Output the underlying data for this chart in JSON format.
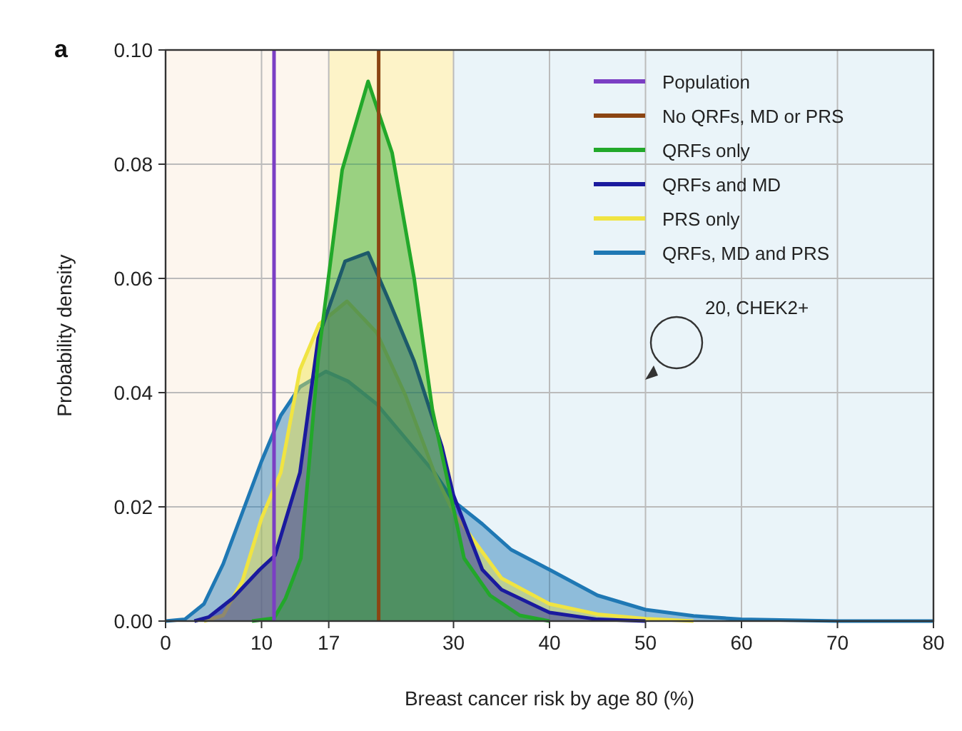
{
  "chart_data": {
    "type": "area",
    "xlabel": "Breast cancer risk by age 80 (%)",
    "ylabel": "Probability density",
    "xlim": [
      0,
      80
    ],
    "xticks": [
      0,
      10,
      17,
      30,
      40,
      50,
      60,
      70,
      80
    ],
    "ylim": [
      0,
      0.1
    ],
    "yticks": [
      {
        "value": 0,
        "label": "0.00"
      },
      {
        "value": 0.02,
        "label": "0.02"
      },
      {
        "value": 0.04,
        "label": "0.04"
      },
      {
        "value": 0.06,
        "label": "0.06"
      },
      {
        "value": 0.08,
        "label": "0.08"
      },
      {
        "value": 0.1,
        "label": "0.10"
      }
    ],
    "grid": true,
    "legend": "top right",
    "bands": [
      {
        "axis": "x",
        "from": 0,
        "to": 17,
        "color": "#fdf6ee"
      },
      {
        "axis": "x",
        "from": 17,
        "to": 30,
        "color": "#fdf3c8"
      },
      {
        "axis": "x",
        "from": 30,
        "to": 80,
        "color": "#eaf4f9"
      }
    ],
    "series": [
      {
        "name": "Population",
        "type": "line",
        "color": "#7b3fc4",
        "x": [
          11.3,
          11.3
        ],
        "values": [
          0,
          0.1
        ]
      },
      {
        "name": "No QRFs, MD or PRS",
        "type": "line",
        "color": "#8b4513",
        "x": [
          22.2,
          22.2
        ],
        "values": [
          0,
          0.1
        ]
      },
      {
        "name": "QRFs only",
        "color": "#22a82a",
        "x": [
          9,
          11.3,
          12.5,
          14.1,
          15.9,
          18.4,
          21.1,
          23.6,
          25.9,
          27.8,
          29.9,
          31.1,
          33.8,
          36.9,
          40
        ],
        "values": [
          0,
          0.0005,
          0.004,
          0.011,
          0.046,
          0.079,
          0.0945,
          0.082,
          0.06,
          0.037,
          0.0205,
          0.011,
          0.0045,
          0.001,
          0
        ]
      },
      {
        "name": "QRFs and MD",
        "color": "#1a1a9e",
        "x": [
          3,
          4.5,
          7,
          9.8,
          11.4,
          14,
          15.9,
          18.7,
          21.1,
          23.3,
          25.9,
          28.8,
          30,
          33,
          35,
          40,
          45,
          50
        ],
        "values": [
          0,
          0.0007,
          0.004,
          0.009,
          0.0115,
          0.026,
          0.0495,
          0.063,
          0.0645,
          0.056,
          0.0455,
          0.0305,
          0.022,
          0.009,
          0.0055,
          0.0015,
          0.0003,
          0
        ]
      },
      {
        "name": "PRS only",
        "color": "#f0e442",
        "x": [
          4,
          6,
          8,
          10,
          12,
          14,
          16,
          18.9,
          22,
          25,
          28,
          30,
          35,
          40,
          45,
          50,
          55
        ],
        "values": [
          0,
          0.001,
          0.007,
          0.018,
          0.026,
          0.044,
          0.052,
          0.056,
          0.0505,
          0.0395,
          0.026,
          0.019,
          0.0075,
          0.003,
          0.0012,
          0.0004,
          0
        ]
      },
      {
        "name": "QRFs, MD and PRS",
        "color": "#1f78b4",
        "x": [
          0,
          2,
          4,
          6,
          8,
          10,
          12,
          14,
          16.7,
          19,
          22,
          25,
          28,
          30,
          33,
          36,
          40,
          45,
          50,
          55,
          60,
          70,
          80
        ],
        "values": [
          0,
          0.0003,
          0.003,
          0.01,
          0.019,
          0.028,
          0.036,
          0.041,
          0.0437,
          0.042,
          0.038,
          0.032,
          0.026,
          0.021,
          0.017,
          0.0125,
          0.009,
          0.0045,
          0.002,
          0.0009,
          0.0003,
          0,
          0
        ]
      }
    ],
    "annotations": [
      "a",
      "20, CHEK2+"
    ]
  }
}
